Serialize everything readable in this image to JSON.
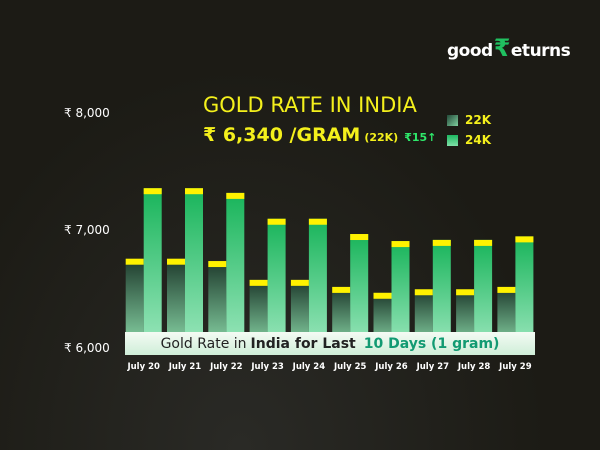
{
  "brand": {
    "prefix": "good",
    "rupee": "₹",
    "suffix": "eturns"
  },
  "header": {
    "title": "GOLD RATE IN INDIA",
    "price": "₹ 6,340 /GRAM",
    "unit": "(22K)",
    "change": "₹15↑"
  },
  "banner": {
    "part1": "Gold Rate in",
    "part2": "India for Last",
    "part3": "10 Days (1 gram)"
  },
  "chart_data": {
    "type": "bar",
    "title": "GOLD RATE IN INDIA",
    "categories": [
      "July 20",
      "July 21",
      "July 22",
      "July 23",
      "July 24",
      "July 25",
      "July 26",
      "July 27",
      "July 28",
      "July 29"
    ],
    "series": [
      {
        "name": "22K",
        "values": [
          6760,
          6760,
          6740,
          6580,
          6580,
          6520,
          6470,
          6500,
          6500,
          6520
        ],
        "color": "#2f6a50"
      },
      {
        "name": "24K",
        "values": [
          7360,
          7360,
          7320,
          7100,
          7100,
          6970,
          6910,
          6920,
          6920,
          6950
        ],
        "color": "#1db860"
      }
    ],
    "cap_color": "#fff200",
    "ylim": [
      6000,
      8000
    ],
    "yticks": [
      "₹ 6,000",
      "₹ 7,000",
      "₹ 8,000"
    ],
    "ytick_values": [
      6000,
      7000,
      8000
    ],
    "legend": "top-right",
    "grid": false
  }
}
